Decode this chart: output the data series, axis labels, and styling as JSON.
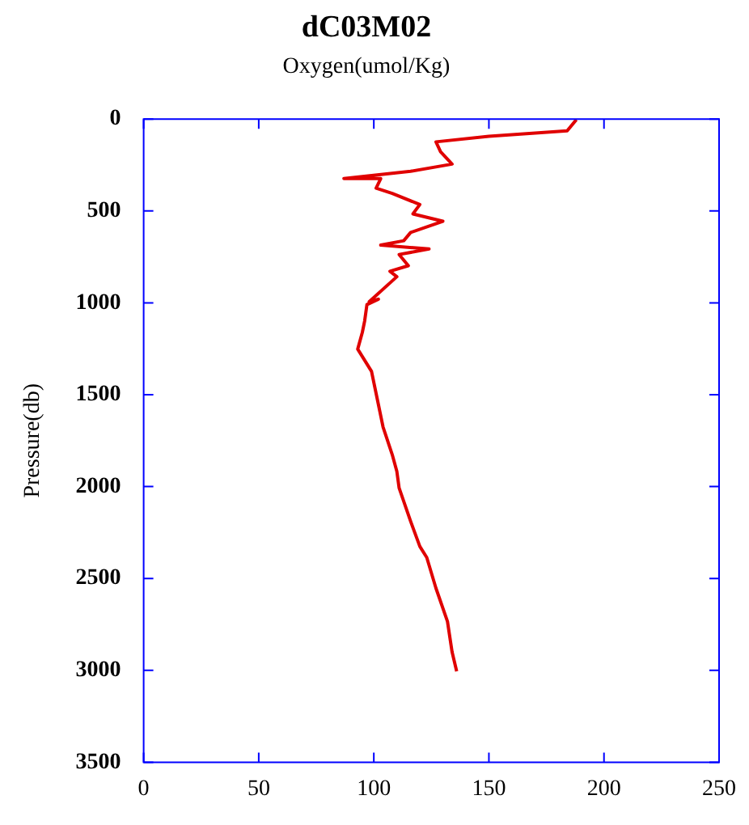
{
  "chart_data": {
    "type": "line",
    "title": "dC03M02",
    "xlabel": "Oxygen(umol/Kg)",
    "ylabel": "Pressure(db)",
    "xlim": [
      0,
      250
    ],
    "xticks": [
      0,
      50,
      100,
      150,
      200,
      250
    ],
    "ylim": [
      3500,
      0
    ],
    "yticks": [
      0,
      500,
      1000,
      1500,
      2000,
      2500,
      3000,
      3500
    ],
    "grid": false,
    "legend": false,
    "marker": "none",
    "line_style": "solid",
    "series": [
      {
        "color": "#e00000",
        "x": [
          188,
          184,
          150,
          127,
          129,
          134,
          116,
          87,
          103,
          101,
          108,
          120,
          117,
          130,
          116,
          113,
          103,
          124,
          111,
          115,
          107,
          110,
          98,
          102,
          97,
          96,
          95,
          93,
          99,
          102,
          104,
          108,
          110,
          111,
          116,
          120,
          123,
          127,
          132,
          134,
          136
        ],
        "values": [
          3,
          64,
          94,
          124,
          178,
          245,
          284,
          324,
          324,
          376,
          405,
          465,
          516,
          556,
          617,
          662,
          686,
          707,
          737,
          798,
          828,
          858,
          994,
          980,
          1010,
          1100,
          1161,
          1252,
          1373,
          1554,
          1675,
          1826,
          1917,
          2008,
          2189,
          2326,
          2386,
          2553,
          2734,
          2900,
          3005
        ]
      }
    ]
  }
}
